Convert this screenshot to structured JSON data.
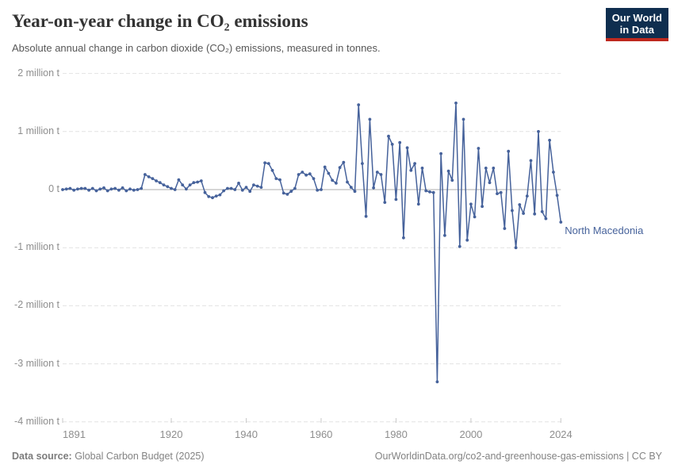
{
  "header": {
    "title": "Year-on-year change in CO₂ emissions",
    "subtitle": "Absolute annual change in carbon dioxide (CO₂) emissions, measured in tonnes.",
    "logo": {
      "line1": "Our World",
      "line2": "in Data"
    }
  },
  "chart_data": {
    "type": "line",
    "title": "Year-on-year change in CO₂ emissions",
    "unit": "million tonnes",
    "entity_label": "North Macedonia",
    "grid": "dashed horizontal gridlines, solid zero line",
    "legend_position": "end-of-line label",
    "x_range": [
      1891,
      2024
    ],
    "y_range_million_t": [
      -4,
      2
    ],
    "x_ticks": [
      1891,
      1920,
      1940,
      1960,
      1980,
      2000,
      2024
    ],
    "y_ticks": [
      {
        "value": 2,
        "label": "2 million t"
      },
      {
        "value": 1,
        "label": "1 million t"
      },
      {
        "value": 0,
        "label": "0 t"
      },
      {
        "value": -1,
        "label": "-1 million t"
      },
      {
        "value": -2,
        "label": "-2 million t"
      },
      {
        "value": -3,
        "label": "-3 million t"
      },
      {
        "value": -4,
        "label": "-4 million t"
      }
    ],
    "series": [
      {
        "name": "North Macedonia",
        "color": "#46629b",
        "x": [
          1891,
          1892,
          1893,
          1894,
          1895,
          1896,
          1897,
          1898,
          1899,
          1900,
          1901,
          1902,
          1903,
          1904,
          1905,
          1906,
          1907,
          1908,
          1909,
          1910,
          1911,
          1912,
          1913,
          1914,
          1915,
          1916,
          1917,
          1918,
          1919,
          1920,
          1921,
          1922,
          1923,
          1924,
          1925,
          1926,
          1927,
          1928,
          1929,
          1930,
          1931,
          1932,
          1933,
          1934,
          1935,
          1936,
          1937,
          1938,
          1939,
          1940,
          1941,
          1942,
          1943,
          1944,
          1945,
          1946,
          1947,
          1948,
          1949,
          1950,
          1951,
          1952,
          1953,
          1954,
          1955,
          1956,
          1957,
          1958,
          1959,
          1960,
          1961,
          1962,
          1963,
          1964,
          1965,
          1966,
          1967,
          1968,
          1969,
          1970,
          1971,
          1972,
          1973,
          1974,
          1975,
          1976,
          1977,
          1978,
          1979,
          1980,
          1981,
          1982,
          1983,
          1984,
          1985,
          1986,
          1987,
          1988,
          1989,
          1990,
          1991,
          1992,
          1993,
          1994,
          1995,
          1996,
          1997,
          1998,
          1999,
          2000,
          2001,
          2002,
          2003,
          2004,
          2005,
          2006,
          2007,
          2008,
          2009,
          2010,
          2011,
          2012,
          2013,
          2014,
          2015,
          2016,
          2017,
          2018,
          2019,
          2020,
          2021,
          2022,
          2023,
          2024
        ],
        "values": [
          0,
          0.01,
          0.02,
          -0.01,
          0.01,
          0.02,
          0.02,
          -0.01,
          0.02,
          -0.02,
          0.01,
          0.03,
          -0.02,
          0.01,
          0.02,
          -0.01,
          0.03,
          -0.02,
          0.01,
          -0.01,
          0,
          0.02,
          0.26,
          0.22,
          0.19,
          0.15,
          0.12,
          0.08,
          0.05,
          0.02,
          0,
          0.17,
          0.08,
          0.01,
          0.08,
          0.12,
          0.13,
          0.15,
          -0.05,
          -0.12,
          -0.14,
          -0.11,
          -0.09,
          -0.02,
          0.02,
          0.02,
          0,
          0.11,
          -0.01,
          0.04,
          -0.03,
          0.08,
          0.06,
          0.04,
          0.46,
          0.45,
          0.33,
          0.19,
          0.17,
          -0.06,
          -0.08,
          -0.03,
          0.02,
          0.26,
          0.3,
          0.25,
          0.27,
          0.19,
          -0.01,
          0,
          0.39,
          0.28,
          0.16,
          0.11,
          0.38,
          0.47,
          0.13,
          0.04,
          -0.03,
          1.46,
          0.45,
          -0.46,
          1.21,
          0.03,
          0.3,
          0.26,
          -0.22,
          0.92,
          0.78,
          -0.17,
          0.81,
          -0.83,
          0.72,
          0.33,
          0.45,
          -0.25,
          0.37,
          -0.02,
          -0.04,
          -0.05,
          -3.31,
          0.62,
          -0.79,
          0.32,
          0.16,
          1.49,
          -0.98,
          1.21,
          -0.87,
          -0.25,
          -0.47,
          0.71,
          -0.29,
          0.37,
          0.12,
          0.37,
          -0.07,
          -0.05,
          -0.67,
          0.66,
          -0.36,
          -1,
          -0.26,
          -0.41,
          -0.11,
          0.5,
          -0.42,
          1,
          -0.38,
          -0.5,
          0.85,
          0.3,
          -0.1,
          -0.56
        ]
      }
    ]
  },
  "footer": {
    "source_label": "Data source:",
    "source_value": " Global Carbon Budget (2025)",
    "link": "OurWorldinData.org/co2-and-greenhouse-gas-emissions | CC BY"
  }
}
